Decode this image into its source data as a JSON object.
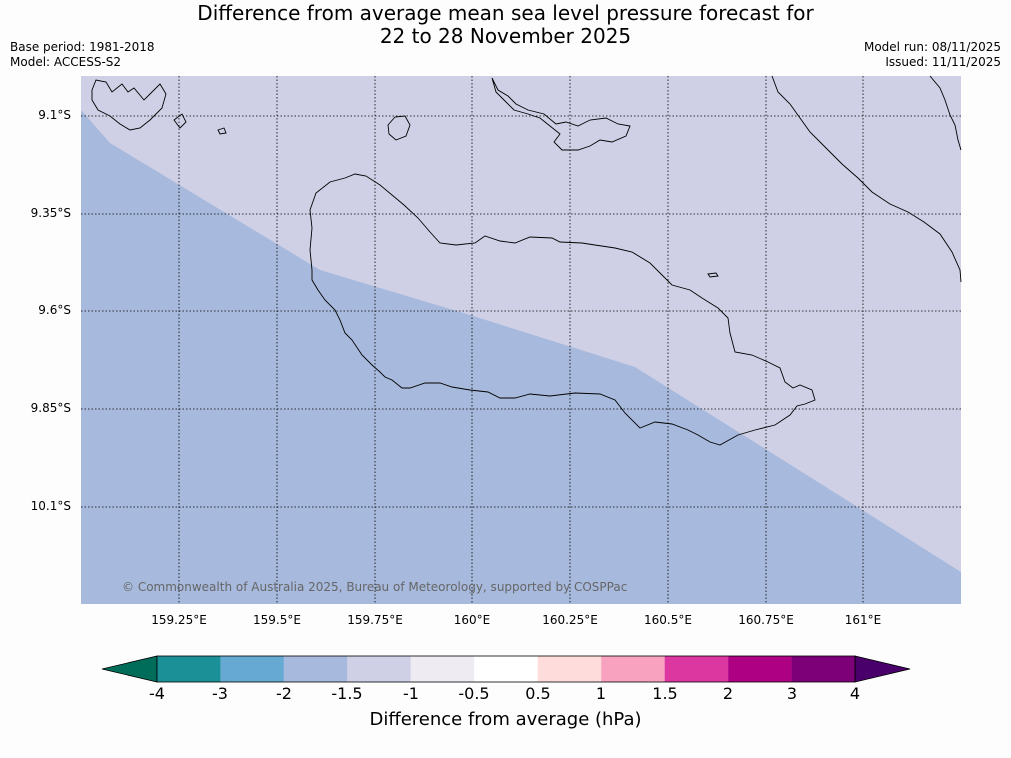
{
  "title_line1": "Difference from average mean sea level pressure forecast for",
  "title_line2": "22 to 28 November 2025",
  "meta_left": [
    "Base period: 1981-2018",
    "Model: ACCESS-S2"
  ],
  "meta_right": [
    "Model run: 08/11/2025",
    "Issued: 11/11/2025"
  ],
  "lat_labels": [
    "9.1°S",
    "9.35°S",
    "9.6°S",
    "9.85°S",
    "10.1°S"
  ],
  "lon_labels": [
    "159.25°E",
    "159.5°E",
    "159.75°E",
    "160°E",
    "160.25°E",
    "160.5°E",
    "160.75°E",
    "161°E"
  ],
  "copyright": "© Commonwealth of Australia 2025, Bureau of Meteorology, supported by COSPPac",
  "colorbar": {
    "ticks": [
      "-4",
      "-3",
      "-2",
      "-1.5",
      "-1",
      "-0.5",
      "0.5",
      "1",
      "1.5",
      "2",
      "3",
      "4"
    ],
    "colors": [
      "#1b9096",
      "#66a9d2",
      "#a7b9dc",
      "#cfd0e6",
      "#efebf3",
      "#ffffff",
      "#ffdcdc",
      "#f8a2c0",
      "#dc36a0",
      "#ae0083",
      "#7d0079"
    ],
    "under_color": "#006d5a",
    "over_color": "#4a006a",
    "label": "Difference from average (hPa)"
  },
  "regions": [
    {
      "name": "-2 to -1.5 hPa",
      "color": "#a7b9dc"
    },
    {
      "name": "-1.5 to -1 hPa",
      "color": "#cfd0e6"
    }
  ]
}
